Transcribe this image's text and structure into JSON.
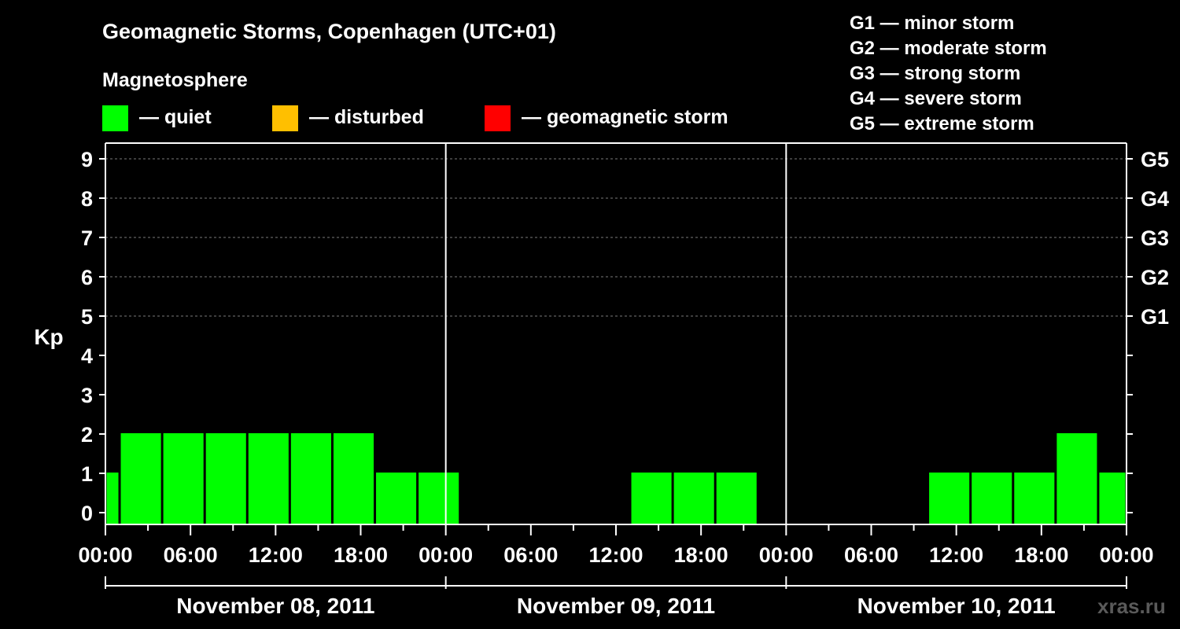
{
  "chart_data": {
    "type": "bar",
    "title": "Geomagnetic Storms, Copenhagen (UTC+01)",
    "subtitle": "Magnetosphere",
    "ylabel": "Kp",
    "ylim": [
      0,
      9
    ],
    "yticks": [
      "0",
      "1",
      "2",
      "3",
      "4",
      "5",
      "6",
      "7",
      "8",
      "9"
    ],
    "x_tick_labels": [
      "00:00",
      "06:00",
      "12:00",
      "18:00",
      "00:00",
      "06:00",
      "12:00",
      "18:00",
      "00:00",
      "06:00",
      "12:00",
      "18:00",
      "00:00"
    ],
    "days": [
      "November 08, 2011",
      "November 09, 2011",
      "November 10, 2011"
    ],
    "g_levels": [
      {
        "label": "G5",
        "kp": 9
      },
      {
        "label": "G4",
        "kp": 8
      },
      {
        "label": "G3",
        "kp": 7
      },
      {
        "label": "G2",
        "kp": 6
      },
      {
        "label": "G1",
        "kp": 5
      }
    ],
    "status_legend": [
      {
        "label": "— quiet",
        "color": "#00ff00"
      },
      {
        "label": "— disturbed",
        "color": "#ffbf00"
      },
      {
        "label": "— geomagnetic storm",
        "color": "#ff0000"
      }
    ],
    "storm_scale": [
      "G1 — minor storm",
      "G2 — moderate storm",
      "G3 — strong storm",
      "G4 — severe storm",
      "G5 — extreme storm"
    ],
    "bars": [
      {
        "start_hour": 0,
        "end_hour": 1,
        "kp": 1,
        "status": "quiet"
      },
      {
        "start_hour": 1,
        "end_hour": 4,
        "kp": 2,
        "status": "quiet"
      },
      {
        "start_hour": 4,
        "end_hour": 7,
        "kp": 2,
        "status": "quiet"
      },
      {
        "start_hour": 7,
        "end_hour": 10,
        "kp": 2,
        "status": "quiet"
      },
      {
        "start_hour": 10,
        "end_hour": 13,
        "kp": 2,
        "status": "quiet"
      },
      {
        "start_hour": 13,
        "end_hour": 16,
        "kp": 2,
        "status": "quiet"
      },
      {
        "start_hour": 16,
        "end_hour": 19,
        "kp": 2,
        "status": "quiet"
      },
      {
        "start_hour": 19,
        "end_hour": 22,
        "kp": 1,
        "status": "quiet"
      },
      {
        "start_hour": 22,
        "end_hour": 25,
        "kp": 1,
        "status": "quiet"
      },
      {
        "start_hour": 37,
        "end_hour": 40,
        "kp": 1,
        "status": "quiet"
      },
      {
        "start_hour": 40,
        "end_hour": 43,
        "kp": 1,
        "status": "quiet"
      },
      {
        "start_hour": 43,
        "end_hour": 46,
        "kp": 1,
        "status": "quiet"
      },
      {
        "start_hour": 58,
        "end_hour": 61,
        "kp": 1,
        "status": "quiet"
      },
      {
        "start_hour": 61,
        "end_hour": 64,
        "kp": 1,
        "status": "quiet"
      },
      {
        "start_hour": 64,
        "end_hour": 67,
        "kp": 1,
        "status": "quiet"
      },
      {
        "start_hour": 67,
        "end_hour": 70,
        "kp": 2,
        "status": "quiet"
      },
      {
        "start_hour": 70,
        "end_hour": 72,
        "kp": 1,
        "status": "quiet"
      }
    ]
  },
  "watermark": "xras.ru"
}
